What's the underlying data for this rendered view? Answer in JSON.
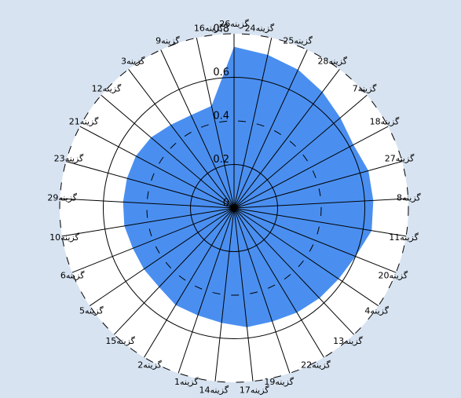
{
  "chart_data": {
    "type": "radar",
    "categories": [
      "گزینه26",
      "گزینه24",
      "گزینه25",
      "گزینه28",
      "گزینه7",
      "گزینه18",
      "گزینه27",
      "گزینه8",
      "گزینه11",
      "گزینه20",
      "گزینه4",
      "گزینه13",
      "گزینه22",
      "گزینه19",
      "گزینه17",
      "گزینه14",
      "گزینه1",
      "گزینه2",
      "گزینه15",
      "گزینه5",
      "گزینه6",
      "گزینه10",
      "گزینه29",
      "گزینه23",
      "گزینه21",
      "گزینه12",
      "گزینه3",
      "گزینه9",
      "گزینه16"
    ],
    "values": [
      0.74,
      0.72,
      0.7,
      0.67,
      0.64,
      0.62,
      0.64,
      0.64,
      0.64,
      0.6,
      0.58,
      0.57,
      0.56,
      0.55,
      0.55,
      0.53,
      0.52,
      0.52,
      0.5,
      0.5,
      0.5,
      0.51,
      0.51,
      0.51,
      0.51,
      0.5,
      0.48,
      0.47,
      0.48
    ],
    "color": "#4a8ff0",
    "ylim": [
      0,
      0.8
    ],
    "yticks": [
      0,
      0.2,
      0.4,
      0.6,
      0.8
    ],
    "grid": true
  }
}
